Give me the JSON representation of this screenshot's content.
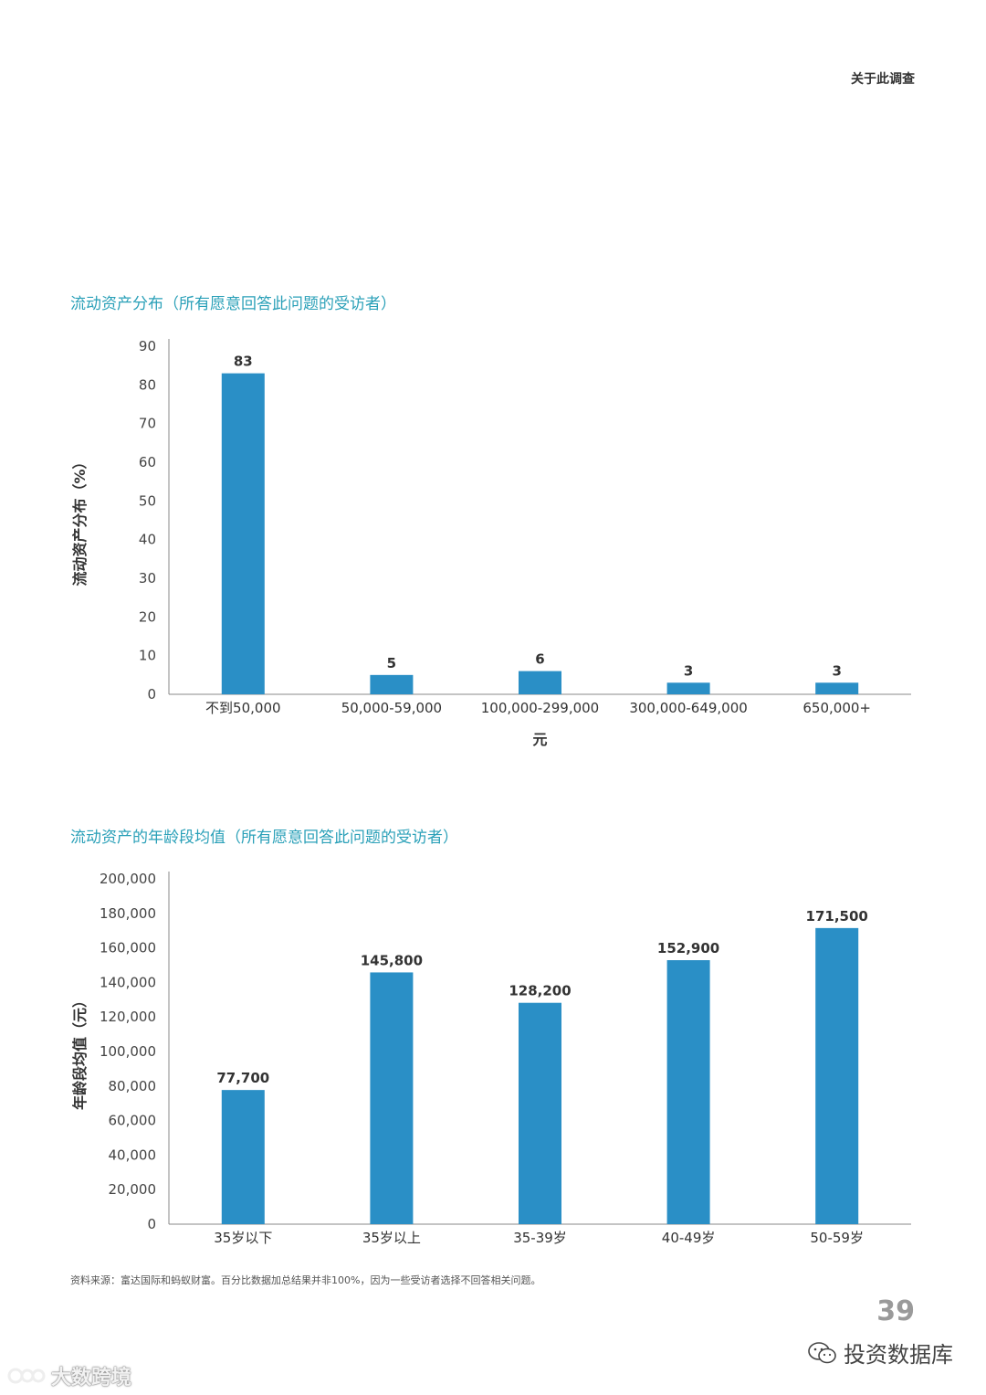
{
  "header": {
    "section_label": "关于此调查"
  },
  "charts": [
    {
      "title_text": "流动资产分布（所有愿意回答此问题的受访者）"
    },
    {
      "title_text": "流动资产的年龄段均值（所有愿意回答此问题的受访者）"
    }
  ],
  "chart_data": [
    {
      "type": "bar",
      "title": "流动资产分布（所有愿意回答此问题的受访者）",
      "categories": [
        "不到50,000",
        "50,000-59,000",
        "100,000-299,000",
        "300,000-649,000",
        "650,000+"
      ],
      "values": [
        83,
        5,
        6,
        3,
        3
      ],
      "value_labels": [
        "83",
        "5",
        "6",
        "3",
        "3"
      ],
      "xlabel": "元",
      "ylabel": "流动资产分布（%）",
      "ylim": [
        0,
        90
      ],
      "yticks": [
        "0",
        "10",
        "20",
        "30",
        "40",
        "50",
        "60",
        "70",
        "80",
        "90"
      ],
      "bar_color": "#2a8fc6",
      "grid": false
    },
    {
      "type": "bar",
      "title": "流动资产的年龄段均值（所有愿意回答此问题的受访者）",
      "categories": [
        "35岁以下",
        "35岁以上",
        "35-39岁",
        "40-49岁",
        "50-59岁"
      ],
      "values": [
        77700,
        145800,
        128200,
        152900,
        171500
      ],
      "value_labels": [
        "77,700",
        "145,800",
        "128,200",
        "152,900",
        "171,500"
      ],
      "xlabel": "",
      "ylabel": "年龄段均值（元）",
      "ylim": [
        0,
        200000
      ],
      "yticks": [
        "0",
        "20,000",
        "40,000",
        "60,000",
        "80,000",
        "100,000",
        "120,000",
        "140,000",
        "160,000",
        "180,000",
        "200,000"
      ],
      "bar_color": "#2a8fc6",
      "grid": false
    }
  ],
  "footnote": "资料来源：富达国际和蚂蚁财富。百分比数据加总结果并非100%，因为一些受访者选择不回答相关问题。",
  "page_number": "39",
  "watermarks": {
    "right_text": "投资数据库",
    "left_text": "大数跨境"
  }
}
